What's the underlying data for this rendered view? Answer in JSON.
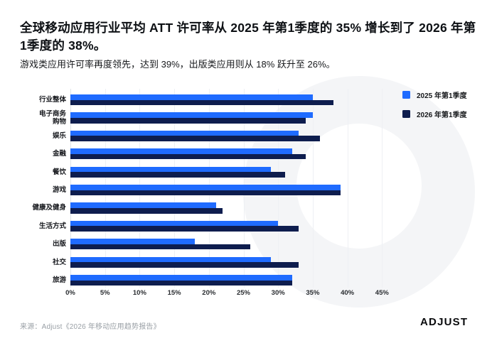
{
  "header": {
    "title": "全球移动应用行业平均 ATT 许可率从 2025 年第1季度的 35% 增长到了 2026 年第1季度的 38%。",
    "subtitle": "游戏类应用许可率再度领先，达到 39%，出版类应用则从 18% 跃升至 26%。"
  },
  "chart_data": {
    "type": "bar",
    "orientation": "horizontal",
    "categories": [
      "行业整体",
      "电子商务\n购物",
      "娱乐",
      "金融",
      "餐饮",
      "游戏",
      "健康及健身",
      "生活方式",
      "出版",
      "社交",
      "旅游"
    ],
    "series": [
      {
        "name": "2025 年第1季度",
        "color": "#1f6bff",
        "values": [
          35,
          35,
          33,
          32,
          29,
          39,
          21,
          30,
          18,
          29,
          32
        ]
      },
      {
        "name": "2026 年第1季度",
        "color": "#0e1d4e",
        "values": [
          38,
          34,
          36,
          34,
          31,
          39,
          22,
          33,
          26,
          33,
          32
        ]
      }
    ],
    "x_ticks": [
      "0%",
      "5%",
      "10%",
      "15%",
      "20%",
      "25%",
      "30%",
      "35%",
      "40%",
      "45%"
    ],
    "xlim": [
      0,
      45
    ],
    "grid": true,
    "legend_position": "top-right",
    "watermark_color": "#f4f5f7"
  },
  "footer": {
    "source": "来源：Adjust《2026 年移动应用趋势报告》",
    "logo": "ADJUST"
  }
}
